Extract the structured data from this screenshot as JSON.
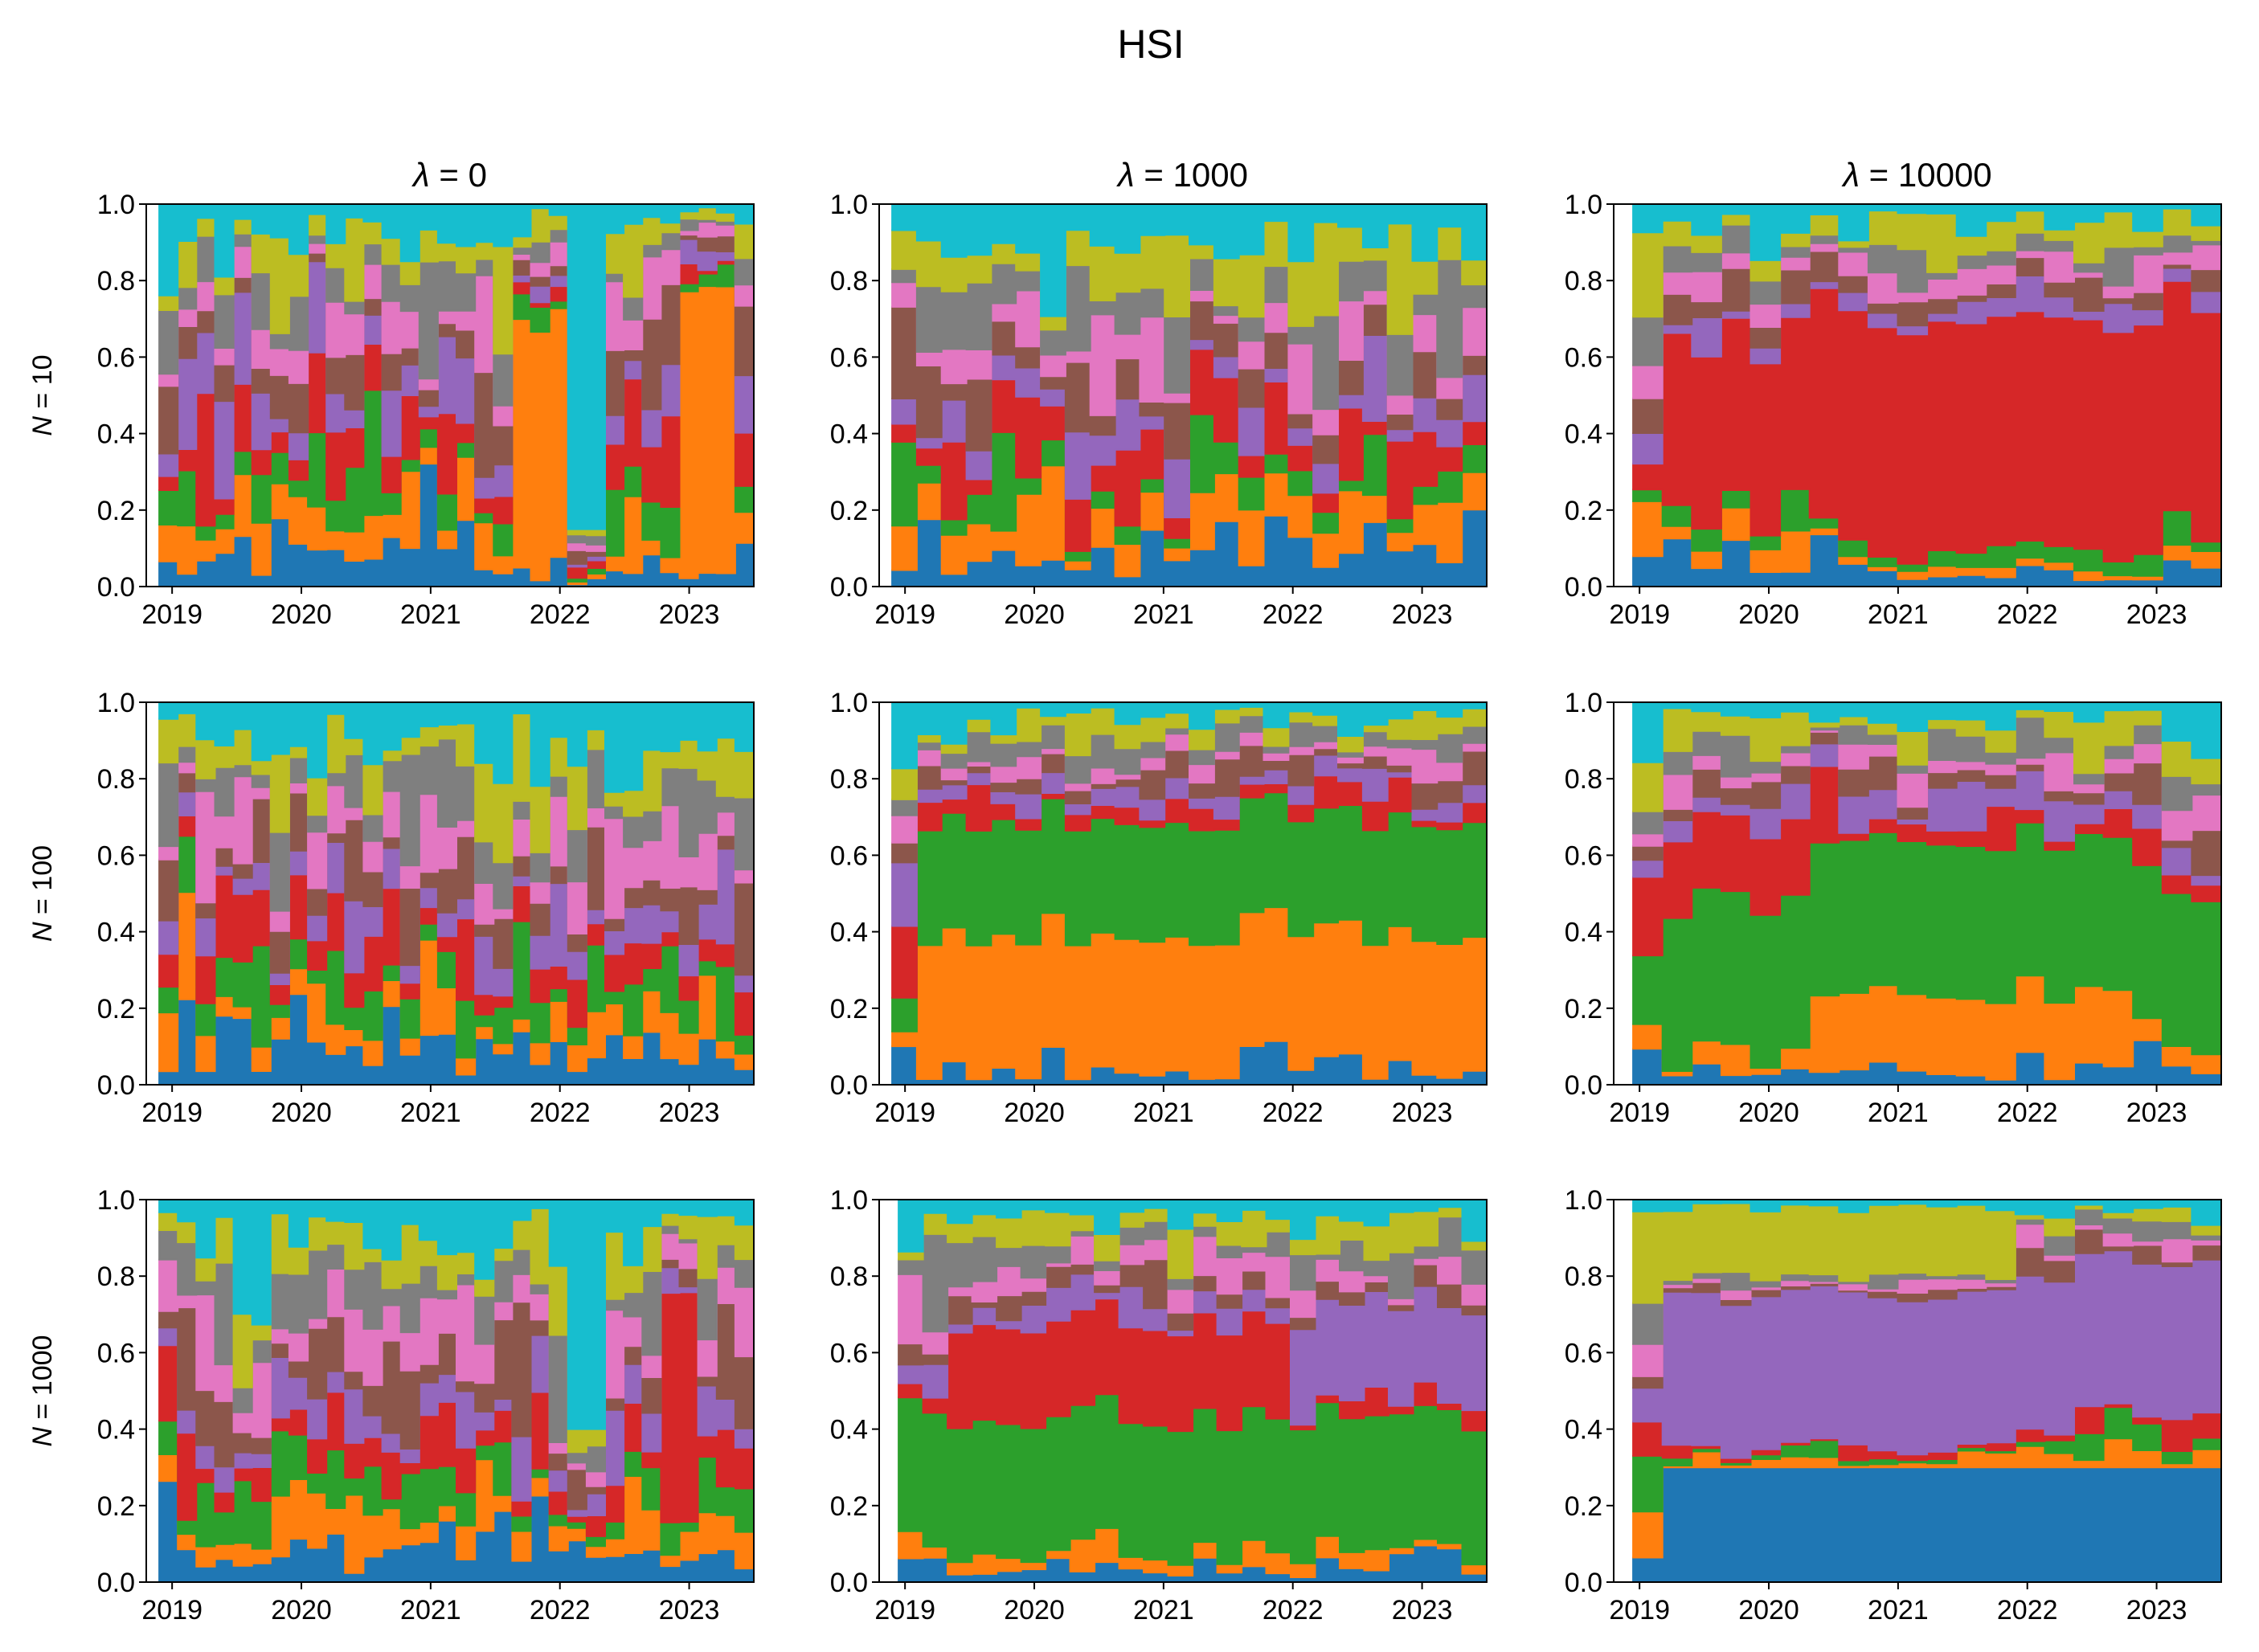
{
  "figure_title": "HSI",
  "chart_data": [
    {
      "type": "area",
      "title": "λ = 0",
      "title_lambda": "λ",
      "title_value": "0",
      "ylabel_var": "N",
      "ylabel_value": "10",
      "ylim": [
        0,
        1
      ],
      "xlim": [
        2018.8,
        2023.5
      ],
      "yticks": [
        0.0,
        0.2,
        0.4,
        0.6,
        0.8,
        1.0
      ],
      "xticks": [
        2019,
        2020,
        2021,
        2022,
        2023
      ],
      "ytick_labels": [
        "0.0",
        "0.2",
        "0.4",
        "0.6",
        "0.8",
        "1.0"
      ],
      "xtick_labels": [
        "2019",
        "2020",
        "2021",
        "2022",
        "2023"
      ],
      "start": 2018.9,
      "series_count": 10,
      "rebalance_segments": 32,
      "dominant_series": [
        {
          "series": 2,
          "x_from": 2021.6,
          "x_to": 2022.1,
          "weight": 0.65
        },
        {
          "series": 10,
          "x_from": 2022.1,
          "x_to": 2022.3,
          "weight": 0.85
        },
        {
          "series": 2,
          "x_from": 2022.9,
          "x_to": 2023.4,
          "weight": 0.75
        }
      ]
    },
    {
      "type": "area",
      "title": "λ = 1000",
      "title_lambda": "λ",
      "title_value": "1000",
      "ylim": [
        0,
        1
      ],
      "xlim": [
        2018.8,
        2023.5
      ],
      "yticks": [
        0.0,
        0.2,
        0.4,
        0.6,
        0.8,
        1.0
      ],
      "xticks": [
        2019,
        2020,
        2021,
        2022,
        2023
      ],
      "ytick_labels": [
        "0.0",
        "0.2",
        "0.4",
        "0.6",
        "0.8",
        "1.0"
      ],
      "xtick_labels": [
        "2019",
        "2020",
        "2021",
        "2022",
        "2023"
      ],
      "start": 2018.9,
      "series_count": 10,
      "rebalance_segments": 24
    },
    {
      "type": "area",
      "title": "λ = 10000",
      "title_lambda": "λ",
      "title_value": "10000",
      "ylim": [
        0,
        1
      ],
      "xlim": [
        2018.8,
        2023.5
      ],
      "yticks": [
        0.0,
        0.2,
        0.4,
        0.6,
        0.8,
        1.0
      ],
      "xticks": [
        2019,
        2020,
        2021,
        2022,
        2023
      ],
      "ytick_labels": [
        "0.0",
        "0.2",
        "0.4",
        "0.6",
        "0.8",
        "1.0"
      ],
      "xtick_labels": [
        "2019",
        "2020",
        "2021",
        "2022",
        "2023"
      ],
      "start": 2018.95,
      "series_count": 10,
      "rebalance_segments": 20,
      "dominant_series": [
        {
          "series": 4,
          "x_from": 2019.1,
          "x_to": 2020.3,
          "weight": 0.45
        },
        {
          "series": 4,
          "x_from": 2020.4,
          "x_to": 2023.5,
          "weight": 0.6
        }
      ]
    },
    {
      "type": "area",
      "ylabel_var": "N",
      "ylabel_value": "100",
      "ylim": [
        0,
        1
      ],
      "xlim": [
        2018.8,
        2023.5
      ],
      "yticks": [
        0.0,
        0.2,
        0.4,
        0.6,
        0.8,
        1.0
      ],
      "xticks": [
        2019,
        2020,
        2021,
        2022,
        2023
      ],
      "ytick_labels": [
        "0.0",
        "0.2",
        "0.4",
        "0.6",
        "0.8",
        "1.0"
      ],
      "xtick_labels": [
        "2019",
        "2020",
        "2021",
        "2022",
        "2023"
      ],
      "start": 2018.9,
      "series_count": 10,
      "rebalance_segments": 32
    },
    {
      "type": "area",
      "ylim": [
        0,
        1
      ],
      "xlim": [
        2018.8,
        2023.5
      ],
      "yticks": [
        0.0,
        0.2,
        0.4,
        0.6,
        0.8,
        1.0
      ],
      "xticks": [
        2019,
        2020,
        2021,
        2022,
        2023
      ],
      "ytick_labels": [
        "0.0",
        "0.2",
        "0.4",
        "0.6",
        "0.8",
        "1.0"
      ],
      "xtick_labels": [
        "2019",
        "2020",
        "2021",
        "2022",
        "2023"
      ],
      "start": 2018.9,
      "series_count": 10,
      "rebalance_segments": 24,
      "dominant_series": [
        {
          "series": 3,
          "x_from": 2019.0,
          "x_to": 2023.5,
          "weight": 0.3
        },
        {
          "series": 2,
          "x_from": 2019.0,
          "x_to": 2023.5,
          "weight": 0.35
        }
      ]
    },
    {
      "type": "area",
      "ylim": [
        0,
        1
      ],
      "xlim": [
        2018.8,
        2023.5
      ],
      "yticks": [
        0.0,
        0.2,
        0.4,
        0.6,
        0.8,
        1.0
      ],
      "xticks": [
        2019,
        2020,
        2021,
        2022,
        2023
      ],
      "ytick_labels": [
        "0.0",
        "0.2",
        "0.4",
        "0.6",
        "0.8",
        "1.0"
      ],
      "xtick_labels": [
        "2019",
        "2020",
        "2021",
        "2022",
        "2023"
      ],
      "start": 2018.95,
      "series_count": 10,
      "rebalance_segments": 20,
      "dominant_series": [
        {
          "series": 3,
          "x_from": 2019.2,
          "x_to": 2023.5,
          "weight": 0.4
        },
        {
          "series": 4,
          "x_from": 2019.2,
          "x_to": 2020.5,
          "weight": 0.2
        },
        {
          "series": 2,
          "x_from": 2020.3,
          "x_to": 2022.9,
          "weight": 0.2
        }
      ]
    },
    {
      "type": "area",
      "ylabel_var": "N",
      "ylabel_value": "1000",
      "ylim": [
        0,
        1
      ],
      "xlim": [
        2018.8,
        2023.5
      ],
      "yticks": [
        0.0,
        0.2,
        0.4,
        0.6,
        0.8,
        1.0
      ],
      "xticks": [
        2019,
        2020,
        2021,
        2022,
        2023
      ],
      "ytick_labels": [
        "0.0",
        "0.2",
        "0.4",
        "0.6",
        "0.8",
        "1.0"
      ],
      "xtick_labels": [
        "2019",
        "2020",
        "2021",
        "2022",
        "2023"
      ],
      "start": 2018.9,
      "series_count": 10,
      "rebalance_segments": 32,
      "dominant_series": [
        {
          "series": 10,
          "x_from": 2022.1,
          "x_to": 2022.3,
          "weight": 0.6
        },
        {
          "series": 4,
          "x_from": 2022.8,
          "x_to": 2023.1,
          "weight": 0.6
        }
      ]
    },
    {
      "type": "area",
      "ylim": [
        0,
        1
      ],
      "xlim": [
        2018.8,
        2023.5
      ],
      "yticks": [
        0.0,
        0.2,
        0.4,
        0.6,
        0.8,
        1.0
      ],
      "xticks": [
        2019,
        2020,
        2021,
        2022,
        2023
      ],
      "ytick_labels": [
        "0.0",
        "0.2",
        "0.4",
        "0.6",
        "0.8",
        "1.0"
      ],
      "xtick_labels": [
        "2019",
        "2020",
        "2021",
        "2022",
        "2023"
      ],
      "start": 2018.95,
      "series_count": 10,
      "rebalance_segments": 24,
      "dominant_series": [
        {
          "series": 3,
          "x_from": 2019.0,
          "x_to": 2023.5,
          "weight": 0.35
        },
        {
          "series": 4,
          "x_from": 2019.3,
          "x_to": 2022.0,
          "weight": 0.25
        },
        {
          "series": 5,
          "x_from": 2022.0,
          "x_to": 2023.5,
          "weight": 0.25
        }
      ]
    },
    {
      "type": "area",
      "ylim": [
        0,
        1
      ],
      "xlim": [
        2018.8,
        2023.5
      ],
      "yticks": [
        0.0,
        0.2,
        0.4,
        0.6,
        0.8,
        1.0
      ],
      "xticks": [
        2019,
        2020,
        2021,
        2022,
        2023
      ],
      "ytick_labels": [
        "0.0",
        "0.2",
        "0.4",
        "0.6",
        "0.8",
        "1.0"
      ],
      "xtick_labels": [
        "2019",
        "2020",
        "2021",
        "2022",
        "2023"
      ],
      "start": 2018.95,
      "series_count": 10,
      "rebalance_segments": 20,
      "dominant_series": [
        {
          "series": 5,
          "x_from": 2019.2,
          "x_to": 2023.5,
          "weight": 0.4
        },
        {
          "series": 1,
          "x_from": 2019.2,
          "x_to": 2023.5,
          "weight": 0.3
        },
        {
          "series": 9,
          "x_from": 2019.2,
          "x_to": 2021.8,
          "weight": 0.18
        }
      ]
    }
  ],
  "palette": [
    "#1f77b4",
    "#ff7f0e",
    "#2ca02c",
    "#d62728",
    "#9467bd",
    "#8c564b",
    "#e377c2",
    "#7f7f7f",
    "#bcbd22",
    "#17becf"
  ]
}
